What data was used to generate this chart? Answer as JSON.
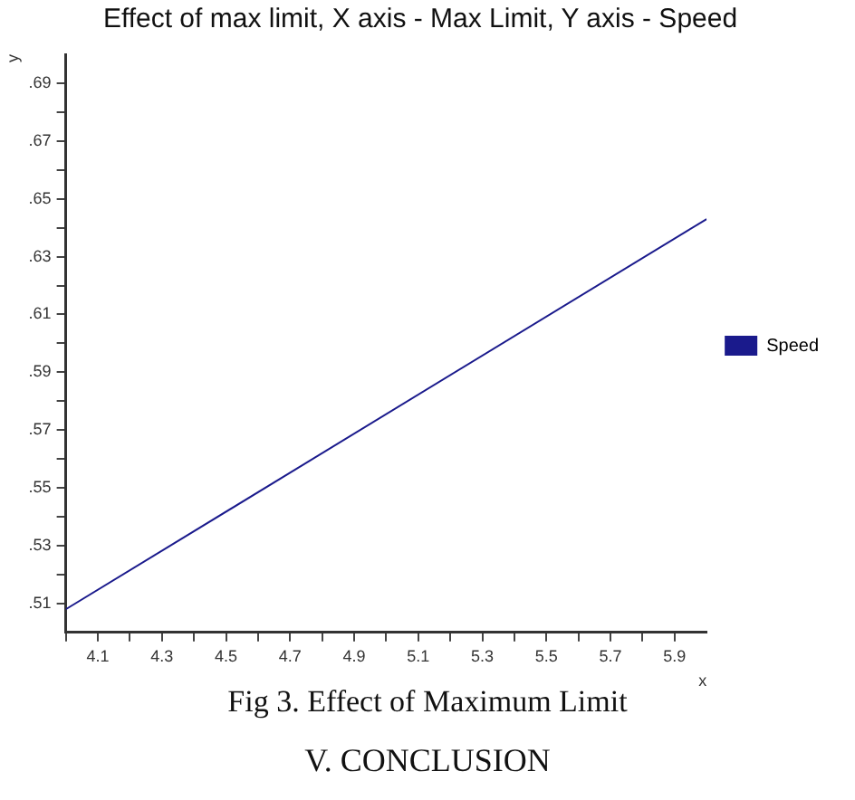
{
  "chart_data": {
    "type": "line",
    "title": "Effect of max limit, X axis - Max Limit, Y axis - Speed",
    "xlabel": "x",
    "ylabel": "y",
    "x": [
      4.0,
      6.0
    ],
    "series": [
      {
        "name": "Speed",
        "color": "#1a1a8c",
        "values": [
          0.508,
          0.643
        ]
      }
    ],
    "xlim": [
      4.0,
      6.0
    ],
    "xticks": [
      {
        "value": 4.0,
        "label": null
      },
      {
        "value": 4.1,
        "label": "4.1"
      },
      {
        "value": 4.2,
        "label": null
      },
      {
        "value": 4.3,
        "label": "4.3"
      },
      {
        "value": 4.4,
        "label": null
      },
      {
        "value": 4.5,
        "label": "4.5"
      },
      {
        "value": 4.6,
        "label": null
      },
      {
        "value": 4.7,
        "label": "4.7"
      },
      {
        "value": 4.8,
        "label": null
      },
      {
        "value": 4.9,
        "label": "4.9"
      },
      {
        "value": 5.0,
        "label": null
      },
      {
        "value": 5.1,
        "label": "5.1"
      },
      {
        "value": 5.2,
        "label": null
      },
      {
        "value": 5.3,
        "label": "5.3"
      },
      {
        "value": 5.4,
        "label": null
      },
      {
        "value": 5.5,
        "label": "5.5"
      },
      {
        "value": 5.6,
        "label": null
      },
      {
        "value": 5.7,
        "label": "5.7"
      },
      {
        "value": 5.8,
        "label": null
      },
      {
        "value": 5.9,
        "label": "5.9"
      }
    ],
    "ylim": [
      0.5,
      0.7
    ],
    "yticks": [
      {
        "value": 0.51,
        "label": ".51"
      },
      {
        "value": 0.52,
        "label": null
      },
      {
        "value": 0.53,
        "label": ".53"
      },
      {
        "value": 0.54,
        "label": null
      },
      {
        "value": 0.55,
        "label": ".55"
      },
      {
        "value": 0.56,
        "label": null
      },
      {
        "value": 0.57,
        "label": ".57"
      },
      {
        "value": 0.58,
        "label": null
      },
      {
        "value": 0.59,
        "label": ".59"
      },
      {
        "value": 0.6,
        "label": null
      },
      {
        "value": 0.61,
        "label": ".61"
      },
      {
        "value": 0.62,
        "label": null
      },
      {
        "value": 0.63,
        "label": ".63"
      },
      {
        "value": 0.64,
        "label": null
      },
      {
        "value": 0.65,
        "label": ".65"
      },
      {
        "value": 0.66,
        "label": null
      },
      {
        "value": 0.67,
        "label": ".67"
      },
      {
        "value": 0.68,
        "label": null
      },
      {
        "value": 0.69,
        "label": ".69"
      }
    ],
    "grid": false,
    "legend": "right",
    "marker": "none",
    "line_style": "solid",
    "annotations": [
      "Fig 3. Effect of Maximum Limit",
      "V. CONCLUSION"
    ]
  }
}
